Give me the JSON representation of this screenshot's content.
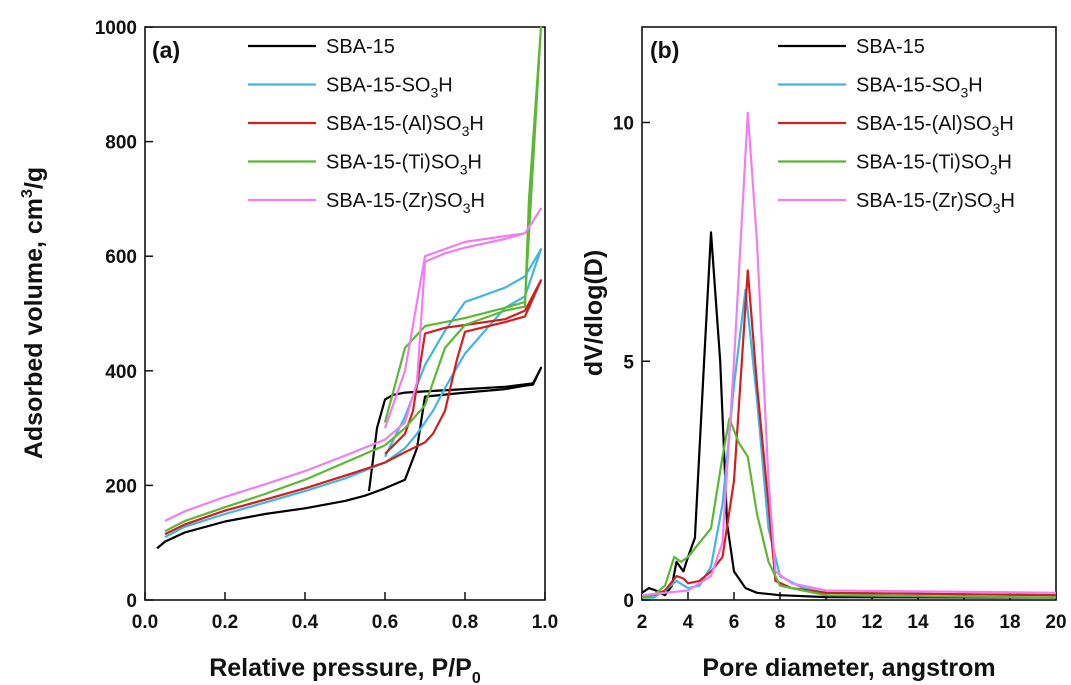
{
  "colors": {
    "SBA-15": "#000000",
    "SBA-15-SO3H": "#3fb6e6",
    "SBA-15-(Al)SO3H": "#d11e1e",
    "SBA-15-(Ti)SO3H": "#5cb832",
    "SBA-15-(Zr)SO3H": "#f07ef0"
  },
  "legend": [
    {
      "key": "SBA-15",
      "prefix": "SBA-15",
      "sub": "",
      "suffix": ""
    },
    {
      "key": "SBA-15-SO3H",
      "prefix": "SBA-15-SO",
      "sub": "3",
      "suffix": "H"
    },
    {
      "key": "SBA-15-(Al)SO3H",
      "prefix": "SBA-15-(Al)SO",
      "sub": "3",
      "suffix": "H"
    },
    {
      "key": "SBA-15-(Ti)SO3H",
      "prefix": "SBA-15-(Ti)SO",
      "sub": "3",
      "suffix": "H"
    },
    {
      "key": "SBA-15-(Zr)SO3H",
      "prefix": "SBA-15-(Zr)SO",
      "sub": "3",
      "suffix": "H"
    }
  ],
  "chart_data": [
    {
      "type": "line",
      "panel_label": "(a)",
      "xlabel": {
        "text": "Relative pressure, P/P",
        "sub": "0"
      },
      "ylabel": {
        "text": "Adsorbed volume, cm",
        "sup": "3",
        "suffix": "/g"
      },
      "xlim": [
        0,
        1.0
      ],
      "ylim": [
        0,
        1000
      ],
      "xticks": [
        0.0,
        0.2,
        0.4,
        0.6,
        0.8,
        1.0
      ],
      "xtick_labels": [
        "0.0",
        "0.2",
        "0.4",
        "0.6",
        "0.8",
        "1.0"
      ],
      "yticks": [
        0,
        200,
        400,
        600,
        800,
        1000
      ],
      "ytick_labels": [
        "0",
        "200",
        "400",
        "600",
        "800",
        "1000"
      ],
      "legend_position": "top-right",
      "series": [
        {
          "key": "SBA-15",
          "x": [
            0.03,
            0.05,
            0.1,
            0.2,
            0.3,
            0.4,
            0.5,
            0.55,
            0.6,
            0.65,
            0.68,
            0.7,
            0.8,
            0.9,
            0.95,
            0.97,
            0.99,
            0.97,
            0.9,
            0.8,
            0.7,
            0.65,
            0.62,
            0.6,
            0.58,
            0.56
          ],
          "y": [
            90,
            102,
            118,
            137,
            150,
            160,
            173,
            182,
            195,
            210,
            265,
            355,
            362,
            368,
            374,
            376,
            405,
            378,
            372,
            368,
            364,
            362,
            358,
            350,
            300,
            190
          ]
        },
        {
          "key": "SBA-15-SO3H",
          "x": [
            0.05,
            0.1,
            0.2,
            0.3,
            0.4,
            0.5,
            0.6,
            0.65,
            0.68,
            0.7,
            0.72,
            0.75,
            0.8,
            0.9,
            0.95,
            0.99,
            0.95,
            0.9,
            0.8,
            0.75,
            0.7,
            0.65,
            0.6
          ],
          "y": [
            110,
            128,
            150,
            170,
            190,
            212,
            240,
            265,
            290,
            310,
            330,
            370,
            430,
            510,
            530,
            612,
            565,
            545,
            520,
            470,
            410,
            320,
            250
          ]
        },
        {
          "key": "SBA-15-(Al)SO3H",
          "x": [
            0.05,
            0.1,
            0.2,
            0.3,
            0.4,
            0.5,
            0.6,
            0.65,
            0.7,
            0.72,
            0.75,
            0.78,
            0.8,
            0.9,
            0.95,
            0.99,
            0.95,
            0.9,
            0.8,
            0.75,
            0.7,
            0.67,
            0.65,
            0.6
          ],
          "y": [
            115,
            132,
            156,
            175,
            195,
            217,
            240,
            258,
            275,
            290,
            330,
            420,
            468,
            485,
            495,
            558,
            505,
            490,
            480,
            475,
            465,
            330,
            290,
            255
          ]
        },
        {
          "key": "SBA-15-(Ti)SO3H",
          "x": [
            0.05,
            0.1,
            0.2,
            0.3,
            0.4,
            0.5,
            0.6,
            0.65,
            0.7,
            0.73,
            0.75,
            0.8,
            0.9,
            0.95,
            0.96,
            0.99,
            0.95,
            0.9,
            0.8,
            0.7,
            0.65,
            0.6
          ],
          "y": [
            120,
            138,
            162,
            185,
            210,
            240,
            270,
            300,
            340,
            400,
            440,
            480,
            505,
            512,
            700,
            1000,
            520,
            510,
            492,
            478,
            440,
            310
          ]
        },
        {
          "key": "SBA-15-(Zr)SO3H",
          "x": [
            0.05,
            0.1,
            0.2,
            0.3,
            0.4,
            0.5,
            0.6,
            0.65,
            0.68,
            0.7,
            0.75,
            0.8,
            0.9,
            0.95,
            0.99,
            0.95,
            0.9,
            0.8,
            0.7,
            0.65,
            0.6
          ],
          "y": [
            138,
            155,
            180,
            202,
            225,
            252,
            280,
            310,
            380,
            590,
            605,
            615,
            630,
            640,
            683,
            640,
            635,
            625,
            600,
            400,
            300
          ]
        }
      ]
    },
    {
      "type": "line",
      "panel_label": "(b)",
      "xlabel": {
        "text": "Pore diameter, angstrom"
      },
      "ylabel": {
        "text": "dV/dlog(D)"
      },
      "xlim": [
        2,
        20
      ],
      "ylim": [
        0,
        12
      ],
      "xticks": [
        2,
        4,
        6,
        8,
        10,
        12,
        14,
        16,
        18,
        20
      ],
      "xtick_labels": [
        "2",
        "4",
        "6",
        "8",
        "10",
        "12",
        "14",
        "16",
        "18",
        "20"
      ],
      "yticks": [
        0,
        5,
        10
      ],
      "ytick_labels": [
        "0",
        "5",
        "10"
      ],
      "legend_position": "top-right",
      "series": [
        {
          "key": "SBA-15",
          "x": [
            2,
            2.3,
            2.6,
            3,
            3.3,
            3.5,
            3.8,
            4,
            4.3,
            4.7,
            5.0,
            5.4,
            5.7,
            6,
            6.5,
            7,
            8,
            10,
            20
          ],
          "y": [
            0.15,
            0.25,
            0.2,
            0.1,
            0.3,
            0.8,
            0.6,
            0.9,
            1.3,
            5.0,
            7.7,
            5.0,
            1.6,
            0.6,
            0.25,
            0.15,
            0.1,
            0.06,
            0.05
          ]
        },
        {
          "key": "SBA-15-SO3H",
          "x": [
            2,
            2.5,
            3,
            3.5,
            4,
            4.5,
            5,
            5.5,
            6,
            6.5,
            7,
            7.5,
            8,
            9,
            10,
            20
          ],
          "y": [
            0.05,
            0.05,
            0.2,
            0.4,
            0.25,
            0.3,
            0.7,
            2.0,
            4.5,
            6.5,
            4.2,
            1.5,
            0.5,
            0.25,
            0.15,
            0.1
          ]
        },
        {
          "key": "SBA-15-(Al)SO3H",
          "x": [
            2,
            2.5,
            3,
            3.5,
            3.8,
            4,
            4.5,
            5,
            5.5,
            6,
            6.6,
            7,
            7.5,
            7.8,
            8.5,
            10,
            20
          ],
          "y": [
            0.05,
            0.1,
            0.2,
            0.5,
            0.45,
            0.35,
            0.4,
            0.6,
            0.9,
            2.5,
            6.9,
            4.5,
            2.0,
            0.4,
            0.25,
            0.15,
            0.1
          ]
        },
        {
          "key": "SBA-15-(Ti)SO3H",
          "x": [
            2,
            2.5,
            3,
            3.4,
            3.7,
            4,
            4.5,
            5,
            5.5,
            5.8,
            6.2,
            6.6,
            7,
            7.5,
            8,
            9,
            10,
            20
          ],
          "y": [
            0.05,
            0.1,
            0.3,
            0.9,
            0.8,
            0.9,
            1.2,
            1.5,
            3.0,
            3.8,
            3.3,
            3.0,
            1.8,
            0.8,
            0.3,
            0.2,
            0.1,
            0.05
          ]
        },
        {
          "key": "SBA-15-(Zr)SO3H",
          "x": [
            2,
            3,
            4,
            5,
            5.5,
            6,
            6.6,
            7,
            7.5,
            7.8,
            8.5,
            10,
            20
          ],
          "y": [
            0.1,
            0.15,
            0.2,
            0.5,
            1.2,
            5.0,
            10.2,
            7.5,
            2.5,
            0.6,
            0.35,
            0.2,
            0.15
          ]
        }
      ]
    }
  ]
}
